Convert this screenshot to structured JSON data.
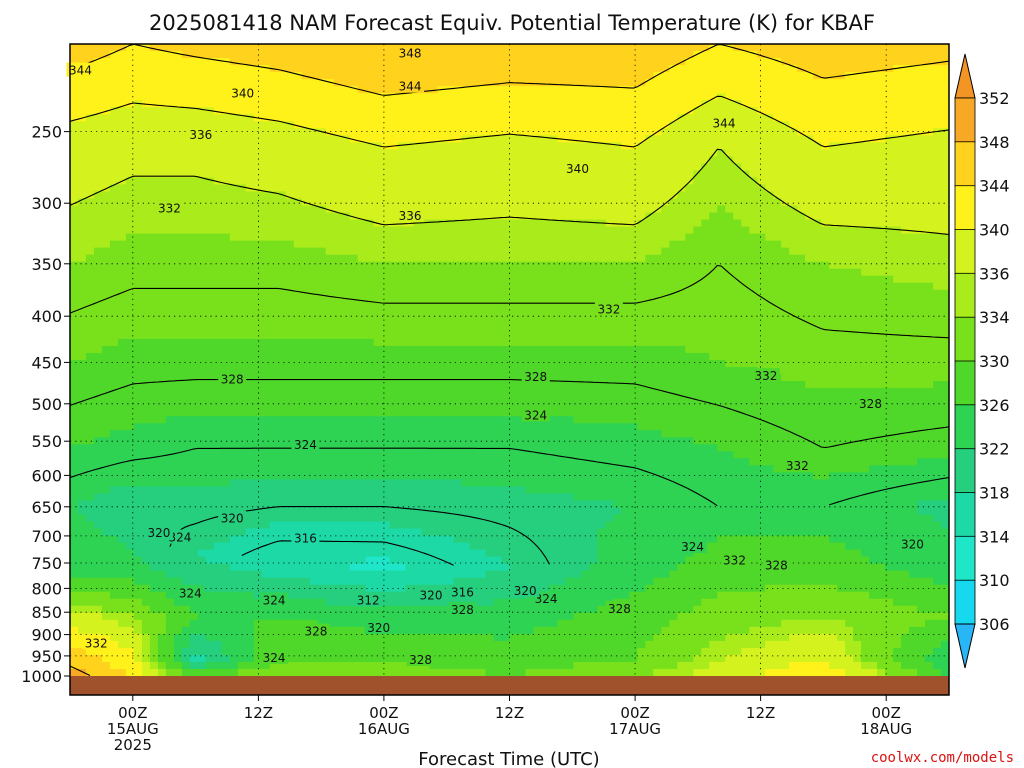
{
  "colors": {
    "ground": "#a0522d",
    "frame": "#000000",
    "contour": "#000000",
    "credit": "#dd1111"
  },
  "chart_data": {
    "type": "heatmap",
    "title": "2025081418 NAM Forecast Equiv. Potential Temperature (K) for KBAF",
    "xlabel": "Forecast Time (UTC)",
    "ylabel": "",
    "y_scale": "log-pressure (inverted)",
    "yticks": [
      250,
      300,
      350,
      400,
      450,
      500,
      550,
      600,
      650,
      700,
      750,
      800,
      850,
      900,
      950,
      1000
    ],
    "ylim": [
      200,
      1000
    ],
    "xticks": [
      {
        "hour": 6,
        "line1": "00Z",
        "line2": "15AUG",
        "line3": "2025"
      },
      {
        "hour": 18,
        "line1": "12Z",
        "line2": "",
        "line3": ""
      },
      {
        "hour": 30,
        "line1": "00Z",
        "line2": "16AUG",
        "line3": ""
      },
      {
        "hour": 42,
        "line1": "12Z",
        "line2": "",
        "line3": ""
      },
      {
        "hour": 54,
        "line1": "00Z",
        "line2": "17AUG",
        "line3": ""
      },
      {
        "hour": 66,
        "line1": "12Z",
        "line2": "",
        "line3": ""
      },
      {
        "hour": 78,
        "line1": "00Z",
        "line2": "18AUG",
        "line3": ""
      }
    ],
    "xlim": [
      0,
      84
    ],
    "colorbar": {
      "ticks": [
        306,
        310,
        314,
        318,
        322,
        326,
        330,
        334,
        336,
        340,
        344,
        348,
        352
      ],
      "levels": [
        {
          "value": 302,
          "color": "#29b6f6"
        },
        {
          "value": 306,
          "color": "#16d8ee"
        },
        {
          "value": 310,
          "color": "#1fe6c8"
        },
        {
          "value": 314,
          "color": "#1dd9a6"
        },
        {
          "value": 318,
          "color": "#26cf7e"
        },
        {
          "value": 322,
          "color": "#2ed354"
        },
        {
          "value": 326,
          "color": "#4fd82a"
        },
        {
          "value": 330,
          "color": "#78e11c"
        },
        {
          "value": 334,
          "color": "#a9eb1b"
        },
        {
          "value": 336,
          "color": "#d4f21e"
        },
        {
          "value": 340,
          "color": "#fff21a"
        },
        {
          "value": 344,
          "color": "#ffd21d"
        },
        {
          "value": 348,
          "color": "#f7a824"
        },
        {
          "value": 352,
          "color": "#f39524"
        }
      ]
    },
    "profiles": [
      {
        "hour": 0,
        "values": [
          {
            "p": 200,
            "v": 346
          },
          {
            "p": 260,
            "v": 338
          },
          {
            "p": 350,
            "v": 334
          },
          {
            "p": 450,
            "v": 330
          },
          {
            "p": 560,
            "v": 326
          },
          {
            "p": 650,
            "v": 322
          },
          {
            "p": 760,
            "v": 324
          },
          {
            "p": 860,
            "v": 338
          },
          {
            "p": 1000,
            "v": 350
          }
        ]
      },
      {
        "hour": 6,
        "values": [
          {
            "p": 200,
            "v": 344
          },
          {
            "p": 260,
            "v": 337
          },
          {
            "p": 350,
            "v": 333
          },
          {
            "p": 450,
            "v": 329
          },
          {
            "p": 560,
            "v": 325
          },
          {
            "p": 650,
            "v": 320
          },
          {
            "p": 760,
            "v": 323
          },
          {
            "p": 860,
            "v": 334
          },
          {
            "p": 1000,
            "v": 344
          }
        ]
      },
      {
        "hour": 12,
        "values": [
          {
            "p": 200,
            "v": 345
          },
          {
            "p": 260,
            "v": 337
          },
          {
            "p": 350,
            "v": 333
          },
          {
            "p": 450,
            "v": 329
          },
          {
            "p": 560,
            "v": 324
          },
          {
            "p": 650,
            "v": 321
          },
          {
            "p": 740,
            "v": 318
          },
          {
            "p": 860,
            "v": 326
          },
          {
            "p": 960,
            "v": 316
          },
          {
            "p": 1000,
            "v": 330
          }
        ]
      },
      {
        "hour": 20,
        "values": [
          {
            "p": 200,
            "v": 346
          },
          {
            "p": 260,
            "v": 338
          },
          {
            "p": 350,
            "v": 333
          },
          {
            "p": 450,
            "v": 329
          },
          {
            "p": 560,
            "v": 324
          },
          {
            "p": 650,
            "v": 320
          },
          {
            "p": 740,
            "v": 314
          },
          {
            "p": 860,
            "v": 326
          },
          {
            "p": 960,
            "v": 330
          },
          {
            "p": 1000,
            "v": 334
          }
        ]
      },
      {
        "hour": 30,
        "values": [
          {
            "p": 200,
            "v": 348
          },
          {
            "p": 260,
            "v": 340
          },
          {
            "p": 350,
            "v": 334
          },
          {
            "p": 450,
            "v": 329
          },
          {
            "p": 560,
            "v": 324
          },
          {
            "p": 650,
            "v": 320
          },
          {
            "p": 760,
            "v": 313
          },
          {
            "p": 860,
            "v": 324
          },
          {
            "p": 960,
            "v": 330
          },
          {
            "p": 1000,
            "v": 332
          }
        ]
      },
      {
        "hour": 42,
        "values": [
          {
            "p": 200,
            "v": 347
          },
          {
            "p": 260,
            "v": 339
          },
          {
            "p": 350,
            "v": 334
          },
          {
            "p": 450,
            "v": 329
          },
          {
            "p": 560,
            "v": 324
          },
          {
            "p": 650,
            "v": 321
          },
          {
            "p": 760,
            "v": 318
          },
          {
            "p": 860,
            "v": 324
          },
          {
            "p": 960,
            "v": 328
          },
          {
            "p": 1000,
            "v": 330
          }
        ]
      },
      {
        "hour": 54,
        "values": [
          {
            "p": 200,
            "v": 347
          },
          {
            "p": 260,
            "v": 340
          },
          {
            "p": 350,
            "v": 334
          },
          {
            "p": 450,
            "v": 329
          },
          {
            "p": 560,
            "v": 325
          },
          {
            "p": 650,
            "v": 322
          },
          {
            "p": 760,
            "v": 324
          },
          {
            "p": 860,
            "v": 328
          },
          {
            "p": 960,
            "v": 330
          },
          {
            "p": 1000,
            "v": 334
          }
        ]
      },
      {
        "hour": 62,
        "values": [
          {
            "p": 200,
            "v": 344
          },
          {
            "p": 260,
            "v": 336
          },
          {
            "p": 350,
            "v": 332
          },
          {
            "p": 450,
            "v": 330
          },
          {
            "p": 560,
            "v": 326
          },
          {
            "p": 650,
            "v": 324
          },
          {
            "p": 760,
            "v": 328
          },
          {
            "p": 860,
            "v": 332
          },
          {
            "p": 960,
            "v": 336
          },
          {
            "p": 1000,
            "v": 338
          }
        ]
      },
      {
        "hour": 72,
        "values": [
          {
            "p": 200,
            "v": 346
          },
          {
            "p": 260,
            "v": 340
          },
          {
            "p": 350,
            "v": 334
          },
          {
            "p": 450,
            "v": 331
          },
          {
            "p": 560,
            "v": 328
          },
          {
            "p": 650,
            "v": 324
          },
          {
            "p": 760,
            "v": 328
          },
          {
            "p": 860,
            "v": 334
          },
          {
            "p": 960,
            "v": 340
          },
          {
            "p": 1000,
            "v": 344
          }
        ]
      },
      {
        "hour": 84,
        "values": [
          {
            "p": 200,
            "v": 345
          },
          {
            "p": 260,
            "v": 339
          },
          {
            "p": 350,
            "v": 335
          },
          {
            "p": 450,
            "v": 331
          },
          {
            "p": 560,
            "v": 327
          },
          {
            "p": 650,
            "v": 321
          },
          {
            "p": 760,
            "v": 324
          },
          {
            "p": 860,
            "v": 330
          },
          {
            "p": 960,
            "v": 322
          },
          {
            "p": 1000,
            "v": 326
          }
        ]
      }
    ],
    "contour_labels": [
      {
        "text": "348",
        "hour": 32.5,
        "p": 205
      },
      {
        "text": "344",
        "hour": 1,
        "p": 214
      },
      {
        "text": "344",
        "hour": 32.5,
        "p": 223
      },
      {
        "text": "344",
        "hour": 62.5,
        "p": 245
      },
      {
        "text": "340",
        "hour": 16.5,
        "p": 227
      },
      {
        "text": "340",
        "hour": 48.5,
        "p": 275
      },
      {
        "text": "336",
        "hour": 12.5,
        "p": 252
      },
      {
        "text": "336",
        "hour": 32.5,
        "p": 310
      },
      {
        "text": "332",
        "hour": 9.5,
        "p": 304
      },
      {
        "text": "332",
        "hour": 51.5,
        "p": 393
      },
      {
        "text": "332",
        "hour": 66.5,
        "p": 466
      },
      {
        "text": "332",
        "hour": 69.5,
        "p": 586
      },
      {
        "text": "332",
        "hour": 63.5,
        "p": 745
      },
      {
        "text": "332",
        "hour": 2.5,
        "p": 920
      },
      {
        "text": "328",
        "hour": 15.5,
        "p": 470
      },
      {
        "text": "328",
        "hour": 44.5,
        "p": 467
      },
      {
        "text": "328",
        "hour": 76.5,
        "p": 500
      },
      {
        "text": "328",
        "hour": 67.5,
        "p": 755
      },
      {
        "text": "328",
        "hour": 37.5,
        "p": 845
      },
      {
        "text": "328",
        "hour": 52.5,
        "p": 843
      },
      {
        "text": "328",
        "hour": 23.5,
        "p": 893
      },
      {
        "text": "328",
        "hour": 33.5,
        "p": 960
      },
      {
        "text": "324",
        "hour": 44.5,
        "p": 515
      },
      {
        "text": "324",
        "hour": 22.5,
        "p": 555
      },
      {
        "text": "324",
        "hour": 10.5,
        "p": 703
      },
      {
        "text": "324",
        "hour": 59.5,
        "p": 720
      },
      {
        "text": "324",
        "hour": 11.5,
        "p": 810
      },
      {
        "text": "324",
        "hour": 19.5,
        "p": 825
      },
      {
        "text": "324",
        "hour": 45.5,
        "p": 822
      },
      {
        "text": "324",
        "hour": 19.5,
        "p": 955
      },
      {
        "text": "320",
        "hour": 15.5,
        "p": 670
      },
      {
        "text": "320",
        "hour": 8.5,
        "p": 695
      },
      {
        "text": "320",
        "hour": 80.5,
        "p": 715
      },
      {
        "text": "320",
        "hour": 34.5,
        "p": 815
      },
      {
        "text": "320",
        "hour": 43.5,
        "p": 805
      },
      {
        "text": "320",
        "hour": 29.5,
        "p": 885
      },
      {
        "text": "316",
        "hour": 22.5,
        "p": 705
      },
      {
        "text": "316",
        "hour": 37.5,
        "p": 808
      },
      {
        "text": "312",
        "hour": 28.5,
        "p": 825
      }
    ],
    "ground_pressure": 1000,
    "credit": "coolwx.com/models"
  }
}
